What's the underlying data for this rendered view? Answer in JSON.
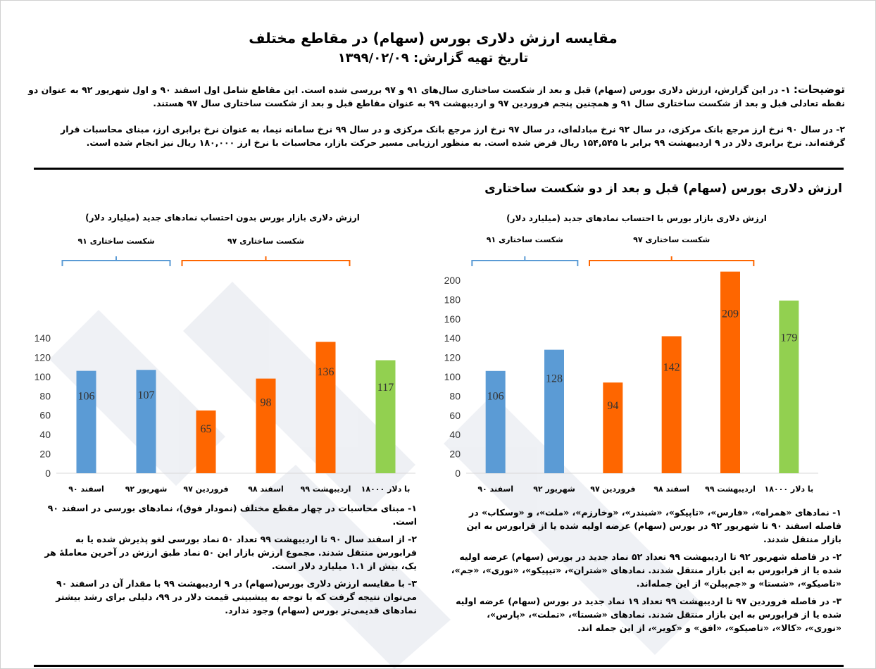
{
  "header": {
    "title": "مقایسه ارزش دلاری بورس (سهام) در مقاطع مختلف",
    "date": "تاریخ تهیه گزارش: ۱۳۹۹/۰۲/۰۹"
  },
  "notes": {
    "label": "توضیحات:",
    "p1": "۱- در این گزارش، ارزش دلاری بورس (سهام) قبل و بعد از شکست ساختاری سال‌های ۹۱ و ۹۷ بررسی شده است. این مقاطع شامل اول اسفند ۹۰ و اول شهریور ۹۲ به عنوان دو نقطه تعادلی قبل و بعد از شکست ساختاری سال ۹۱ و همچنین پنجم فروردین ۹۷ و اردیبهشت ۹۹ به عنوان مقاطع قبل و بعد از شکست ساختاری سال ۹۷ هستند.",
    "p2": "۲- در سال ۹۰ نرخ ارز مرجع بانک مرکزی، در سال ۹۲ نرخ مبادله‌ای، در سال ۹۷ نرخ ارز مرجع بانک مرکزی و در سال ۹۹ نرخ سامانه نیما، به عنوان نرخ برابری ارز، مبنای محاسبات قرار گرفته‌اند. نرخ برابری دلار در ۹ اردیبهشت ۹۹ برابر با ۱۵۴,۵۴۵ ریال فرض شده است. به منظور ارزیابی مسیر حرکت بازار، محاسبات با نرخ ارز ۱۸۰,۰۰۰ ریال نیز انجام شده است."
  },
  "section_title": "ارزش دلاری بورس (سهام) قبل و بعد از دو شکست ساختاری",
  "colors": {
    "blue": "#5b9bd5",
    "orange": "#fe6600",
    "green": "#92d050",
    "axis": "#d9d9d9",
    "grid": "#e6e6e6"
  },
  "chart_data": [
    {
      "type": "bar",
      "title": "ارزش دلاری بازار بورس با احتساب نمادهای جدید (میلیارد دلار)",
      "categories": [
        "اسفند ۹۰",
        "شهریور ۹۲",
        "فروردین ۹۷",
        "اسفند ۹۸",
        "اردیبهشت ۹۹",
        "با دلار ۱۸۰۰۰"
      ],
      "values": [
        106,
        128,
        94,
        142,
        209,
        179
      ],
      "bar_colors": [
        "blue",
        "blue",
        "orange",
        "orange",
        "orange",
        "green"
      ],
      "ylim": [
        0,
        200
      ],
      "yticks": [
        0,
        20,
        40,
        60,
        80,
        100,
        120,
        140,
        160,
        180,
        200
      ],
      "brackets": [
        {
          "label": "شکست ساختاری ۹۱",
          "color": "blue"
        },
        {
          "label": "شکست ساختاری ۹۷",
          "color": "orange"
        }
      ]
    },
    {
      "type": "bar",
      "title": "ارزش دلاری بازار بورس بدون احتساب نمادهای جدید (میلیارد دلار)",
      "categories": [
        "اسفند ۹۰",
        "شهریور ۹۲",
        "فروردین ۹۷",
        "اسفند ۹۸",
        "اردیبهشت ۹۹",
        "با دلار ۱۸۰۰۰"
      ],
      "values": [
        106,
        107,
        65,
        98,
        136,
        117
      ],
      "bar_colors": [
        "blue",
        "blue",
        "orange",
        "orange",
        "orange",
        "green"
      ],
      "ylim": [
        0,
        140
      ],
      "yticks": [
        0,
        20,
        40,
        60,
        80,
        100,
        120,
        140
      ],
      "brackets": [
        {
          "label": "شکست ساختاری ۹۱",
          "color": "blue"
        },
        {
          "label": "شکست ساختاری ۹۷",
          "color": "orange"
        }
      ]
    }
  ],
  "right_notes": [
    "۱- نمادهای «همراه»، «فارس»، «تاپیکو»، «شبندر»، «وخارزم»، «ملت»، و «وسکاب» در فاصله اسفند ۹۰ تا شهریور ۹۲ در بورس (سهام) عرضه اولیه شده یا از فرابورس به این بازار منتقل شدند.",
    "۲- در فاصله شهریور ۹۲ تا اردیبهشت ۹۹ تعداد ۵۲ نماد جدید در بورس (سهام) عرضه اولیه شده یا از فرابورس به این بازار منتقل شدند. نمادهای «شتران»، «تیپیکو»، «نوری»، «جم»، «تاصیکو»، «شستا» و «جم‌پیلن» از این جمله‌اند.",
    "۳- در فاصله فروردین ۹۷ تا اردیبهشت ۹۹ تعداد ۱۹ نماد جدید در بورس (سهام) عرضه اولیه شده یا از فرابورس به این بازار منتقل شدند. نمادهای «شستا»، «تملت»، «پارس»، «نوری»، «کالا»، «تاصیکو»، «افق» و «کویر»، از این جمله اند."
  ],
  "left_notes": [
    "۱- مبنای محاسبات در چهار مقطع مختلف (نمودار فوق)، نمادهای بورسی در اسفند ۹۰ است.",
    "۲- از اسفند سال ۹۰ تا اردیبهشت ۹۹ تعداد ۵۰ نماد بورسی لغو پذیرش شده یا به فرابورس منتقل شدند. مجموع ارزش بازار این ۵۰ نماد طبق ارزش در آخرین معاملهٔ هر یک، بیش از ۱.۱ میلیارد دلار است.",
    "۳- با مقایسه ارزش دلاری بورس(سهام) در ۹ اردیبهشت ۹۹ با مقدار آن در اسفند ۹۰ می‌توان نتیجه گرفت که با توجه به پیشبینی قیمت دلار در ۹۹، دلیلی برای رشد بیشتر نمادهای قدیمی‌تر بورس (سهام) وجود ندارد."
  ]
}
